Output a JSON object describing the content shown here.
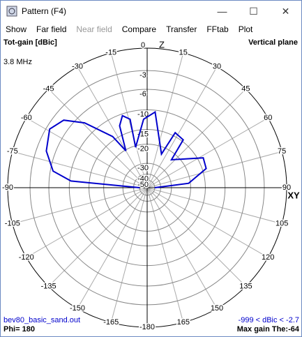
{
  "window": {
    "title": "Pattern  (F4)"
  },
  "menu": [
    "Show",
    "Far field",
    "Near field",
    "Compare",
    "Transfer",
    "FFtab",
    "Plot"
  ],
  "plot": {
    "type": "polar",
    "title_left": "Tot-gain [dBic]",
    "title_right": "Vertical plane",
    "frequency": "3.8 MHz",
    "axis_z": "Z",
    "axis_xy": "XY",
    "rticks": [
      0,
      -3,
      -6,
      -10,
      -15,
      -20,
      -30,
      -40,
      -50
    ],
    "angle_ticks": [
      -180,
      -165,
      -150,
      -135,
      -120,
      -105,
      -90,
      -75,
      -60,
      -45,
      -30,
      -15,
      15,
      30,
      45,
      60,
      75,
      90,
      105,
      120,
      135,
      150,
      165
    ],
    "series": {
      "color": "#0000cc",
      "theta": [
        -90,
        -85,
        -80,
        -70,
        -59,
        -51,
        -44,
        -34,
        -30,
        -24,
        -19,
        -14,
        -16,
        -3,
        6,
        23,
        27,
        37,
        41,
        62,
        72,
        84,
        90
      ],
      "gain": [
        -50,
        -10.3,
        -6.5,
        -4.5,
        -3.5,
        -4.5,
        -7.5,
        -14,
        -20.4,
        -12.4,
        -10.4,
        -11.7,
        -20.6,
        -12.2,
        -10.4,
        -23,
        -14,
        -14.5,
        -22.8,
        -13.5,
        -13.9,
        -20.7,
        -50
      ]
    },
    "footer": {
      "file": "bev80_basic_sand.out",
      "phi": "Phi= 180",
      "range": "-999 < dBic < -2.7",
      "max_gain": "Max gain The:-64"
    }
  }
}
